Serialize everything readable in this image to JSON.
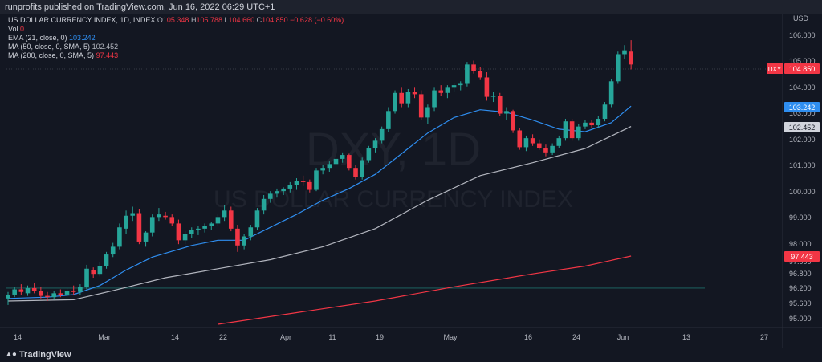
{
  "header": {
    "published": "runprofits published on TradingView.com, Jun 16, 2022 06:29 UTC+1"
  },
  "legend": {
    "title": "US DOLLAR CURRENCY INDEX, 1D, INDEX",
    "o_label": "O",
    "o": "105.348",
    "h_label": "H",
    "h": "105.788",
    "l_label": "L",
    "l": "104.660",
    "c_label": "C",
    "c": "104.850",
    "change": "−0.628 (−0.60%)",
    "vol_label": "Vol",
    "vol": "0",
    "ema_label": "EMA (21, close, 0)",
    "ema": "103.242",
    "ma50_label": "MA (50, close, 0, SMA, 5)",
    "ma50": "102.452",
    "ma200_label": "MA (200, close, 0, SMA, 5)",
    "ma200": "97.443"
  },
  "watermark": {
    "symbol": "DXY, 1D",
    "name": "US DOLLAR CURRENCY INDEX"
  },
  "footer": {
    "brand": "TradingView"
  },
  "colors": {
    "up": "#26a69a",
    "down": "#f23645",
    "ema": "#2f8ef0",
    "ma50": "#b2b5be",
    "ma200": "#f23645",
    "bg": "#131722"
  },
  "chart_data": {
    "type": "candlestick",
    "y_axis": {
      "label": "USD",
      "range": [
        94.8,
        106.6
      ],
      "ticks": [
        "106.000",
        "105.000",
        "104.000",
        "103.000",
        "102.000",
        "101.000",
        "100.000",
        "99.000",
        "98.000",
        "97.000",
        "96.800",
        "96.200",
        "95.600",
        "95.000"
      ]
    },
    "x_axis": {
      "ticks": [
        "14",
        "Mar",
        "14",
        "22",
        "Apr",
        "11",
        "19",
        "May",
        "16",
        "24",
        "Jun",
        "13",
        "27"
      ]
    },
    "labels": {
      "dxy_tag": "DXY",
      "last": "104.850",
      "ema": "103.242",
      "ma50": "102.452",
      "ma200": "97.443"
    },
    "candles": [
      [
        95.8,
        96.05,
        95.55,
        95.95
      ],
      [
        95.95,
        96.25,
        95.85,
        96.15
      ],
      [
        96.15,
        96.35,
        95.95,
        96.05
      ],
      [
        96.0,
        96.3,
        95.9,
        96.2
      ],
      [
        96.2,
        96.4,
        96.0,
        96.1
      ],
      [
        96.1,
        96.25,
        95.8,
        95.9
      ],
      [
        95.9,
        96.05,
        95.7,
        95.85
      ],
      [
        95.85,
        96.1,
        95.75,
        96.0
      ],
      [
        96.0,
        96.15,
        95.85,
        95.95
      ],
      [
        95.95,
        96.2,
        95.85,
        96.1
      ],
      [
        96.1,
        96.3,
        95.95,
        96.05
      ],
      [
        96.05,
        96.35,
        95.95,
        96.25
      ],
      [
        96.25,
        97.1,
        96.15,
        96.95
      ],
      [
        96.9,
        97.0,
        96.6,
        96.75
      ],
      [
        96.75,
        97.2,
        96.65,
        97.05
      ],
      [
        97.05,
        97.6,
        96.95,
        97.5
      ],
      [
        97.5,
        97.95,
        97.4,
        97.8
      ],
      [
        97.8,
        98.7,
        97.7,
        98.55
      ],
      [
        98.5,
        99.2,
        98.3,
        99.0
      ],
      [
        99.0,
        99.35,
        98.8,
        99.1
      ],
      [
        99.1,
        99.25,
        97.9,
        98.0
      ],
      [
        98.0,
        98.4,
        97.8,
        98.35
      ],
      [
        98.35,
        99.05,
        98.2,
        98.95
      ],
      [
        98.95,
        99.3,
        98.8,
        99.05
      ],
      [
        99.0,
        99.15,
        98.85,
        98.95
      ],
      [
        98.95,
        99.05,
        98.6,
        98.7
      ],
      [
        98.7,
        98.85,
        97.9,
        98.05
      ],
      [
        98.05,
        98.4,
        97.9,
        98.3
      ],
      [
        98.3,
        98.55,
        98.15,
        98.45
      ],
      [
        98.45,
        98.6,
        98.25,
        98.5
      ],
      [
        98.5,
        98.7,
        98.35,
        98.6
      ],
      [
        98.6,
        98.75,
        98.45,
        98.7
      ],
      [
        98.7,
        99.05,
        98.6,
        98.95
      ],
      [
        98.95,
        99.4,
        98.8,
        99.2
      ],
      [
        99.2,
        99.35,
        98.4,
        98.5
      ],
      [
        98.5,
        98.65,
        97.6,
        97.85
      ],
      [
        97.85,
        98.3,
        97.7,
        98.2
      ],
      [
        98.2,
        98.65,
        98.05,
        98.55
      ],
      [
        98.55,
        99.3,
        98.45,
        99.2
      ],
      [
        99.2,
        99.8,
        99.05,
        99.65
      ],
      [
        99.65,
        99.95,
        99.5,
        99.85
      ],
      [
        99.85,
        100.05,
        99.7,
        99.95
      ],
      [
        99.95,
        100.1,
        99.8,
        100.05
      ],
      [
        100.05,
        100.3,
        99.9,
        100.2
      ],
      [
        100.2,
        100.45,
        100.0,
        100.35
      ],
      [
        100.35,
        100.55,
        100.15,
        100.3
      ],
      [
        100.3,
        100.4,
        99.9,
        100.0
      ],
      [
        100.0,
        100.85,
        99.95,
        100.75
      ],
      [
        100.75,
        100.95,
        100.6,
        100.85
      ],
      [
        100.85,
        101.1,
        100.7,
        101.0
      ],
      [
        101.0,
        101.3,
        100.9,
        101.2
      ],
      [
        101.2,
        101.45,
        101.05,
        101.35
      ],
      [
        101.35,
        101.4,
        100.75,
        100.85
      ],
      [
        100.85,
        100.95,
        100.4,
        100.5
      ],
      [
        100.5,
        101.25,
        100.4,
        101.15
      ],
      [
        101.15,
        101.7,
        101.05,
        101.6
      ],
      [
        101.6,
        102.0,
        101.45,
        101.9
      ],
      [
        101.9,
        102.45,
        101.8,
        102.35
      ],
      [
        102.35,
        103.2,
        102.25,
        103.05
      ],
      [
        103.05,
        103.85,
        102.95,
        103.75
      ],
      [
        103.75,
        103.95,
        103.2,
        103.35
      ],
      [
        103.35,
        103.9,
        103.2,
        103.8
      ],
      [
        103.8,
        103.95,
        103.55,
        103.7
      ],
      [
        103.7,
        103.85,
        102.7,
        102.8
      ],
      [
        102.8,
        103.3,
        102.55,
        103.2
      ],
      [
        103.2,
        103.95,
        103.05,
        103.85
      ],
      [
        103.85,
        104.05,
        103.65,
        103.75
      ],
      [
        103.75,
        104.05,
        103.55,
        103.95
      ],
      [
        103.95,
        104.15,
        103.8,
        104.05
      ],
      [
        104.05,
        104.2,
        103.85,
        104.1
      ],
      [
        104.1,
        104.95,
        104.0,
        104.85
      ],
      [
        104.85,
        105.0,
        104.5,
        104.6
      ],
      [
        104.6,
        104.75,
        104.25,
        104.35
      ],
      [
        104.35,
        104.55,
        103.45,
        103.6
      ],
      [
        103.6,
        103.8,
        103.4,
        103.65
      ],
      [
        103.65,
        103.75,
        102.85,
        102.95
      ],
      [
        102.95,
        103.2,
        102.7,
        103.05
      ],
      [
        103.05,
        103.1,
        102.2,
        102.3
      ],
      [
        102.3,
        102.4,
        101.55,
        101.65
      ],
      [
        101.65,
        102.1,
        101.5,
        102.0
      ],
      [
        102.0,
        102.15,
        101.7,
        101.8
      ],
      [
        101.8,
        101.95,
        101.55,
        101.6
      ],
      [
        101.6,
        101.75,
        101.3,
        101.45
      ],
      [
        101.45,
        101.8,
        101.35,
        101.7
      ],
      [
        101.7,
        102.1,
        101.6,
        102.0
      ],
      [
        102.0,
        102.75,
        101.9,
        102.65
      ],
      [
        102.65,
        102.75,
        101.9,
        102.0
      ],
      [
        102.0,
        102.55,
        101.9,
        102.45
      ],
      [
        102.45,
        102.7,
        102.35,
        102.6
      ],
      [
        102.6,
        102.7,
        102.4,
        102.5
      ],
      [
        102.5,
        102.85,
        102.4,
        102.75
      ],
      [
        102.75,
        103.4,
        102.65,
        103.3
      ],
      [
        103.3,
        104.3,
        103.2,
        104.2
      ],
      [
        104.2,
        105.35,
        104.1,
        105.25
      ],
      [
        105.25,
        105.6,
        105.05,
        105.4
      ],
      [
        105.35,
        105.79,
        104.66,
        104.85
      ]
    ],
    "ema21": [
      [
        0,
        95.8
      ],
      [
        6,
        95.85
      ],
      [
        10,
        95.95
      ],
      [
        14,
        96.3
      ],
      [
        18,
        96.9
      ],
      [
        22,
        97.4
      ],
      [
        28,
        97.85
      ],
      [
        32,
        98.05
      ],
      [
        36,
        98.05
      ],
      [
        40,
        98.55
      ],
      [
        44,
        99.05
      ],
      [
        48,
        99.6
      ],
      [
        52,
        100.05
      ],
      [
        56,
        100.6
      ],
      [
        60,
        101.4
      ],
      [
        64,
        102.2
      ],
      [
        68,
        102.8
      ],
      [
        72,
        103.1
      ],
      [
        76,
        103.0
      ],
      [
        80,
        102.7
      ],
      [
        84,
        102.35
      ],
      [
        88,
        102.25
      ],
      [
        92,
        102.6
      ],
      [
        95,
        103.24
      ]
    ],
    "ma50": [
      [
        0,
        95.7
      ],
      [
        10,
        95.75
      ],
      [
        16,
        96.1
      ],
      [
        24,
        96.6
      ],
      [
        32,
        96.95
      ],
      [
        40,
        97.3
      ],
      [
        48,
        97.8
      ],
      [
        56,
        98.5
      ],
      [
        64,
        99.6
      ],
      [
        72,
        100.55
      ],
      [
        80,
        101.05
      ],
      [
        88,
        101.6
      ],
      [
        95,
        102.45
      ]
    ],
    "ma200": [
      [
        32,
        94.8
      ],
      [
        44,
        95.25
      ],
      [
        56,
        95.7
      ],
      [
        68,
        96.25
      ],
      [
        80,
        96.75
      ],
      [
        88,
        97.05
      ],
      [
        95,
        97.44
      ]
    ],
    "h_line": 96.2
  }
}
